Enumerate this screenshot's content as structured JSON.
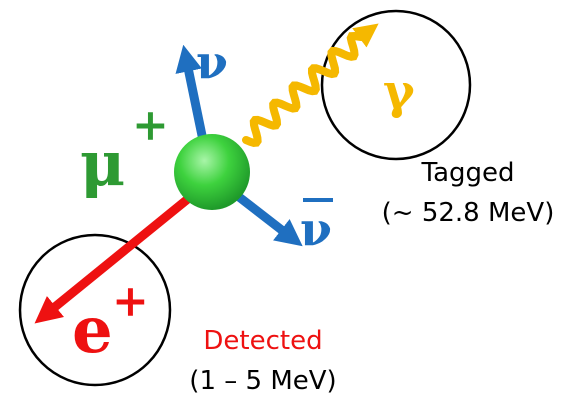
{
  "particles": {
    "muon": {
      "symbol": "μ",
      "charge": "+"
    },
    "neutrino": {
      "symbol": "ν"
    },
    "antineutrino": {
      "symbol": "ν"
    },
    "photon": {
      "symbol": "γ",
      "note": "Tagged",
      "energy": "(~ 52.8 MeV)"
    },
    "positron": {
      "symbol": "e",
      "charge": "+",
      "note": "Detected",
      "energy": "(1 – 5 MeV)"
    }
  }
}
